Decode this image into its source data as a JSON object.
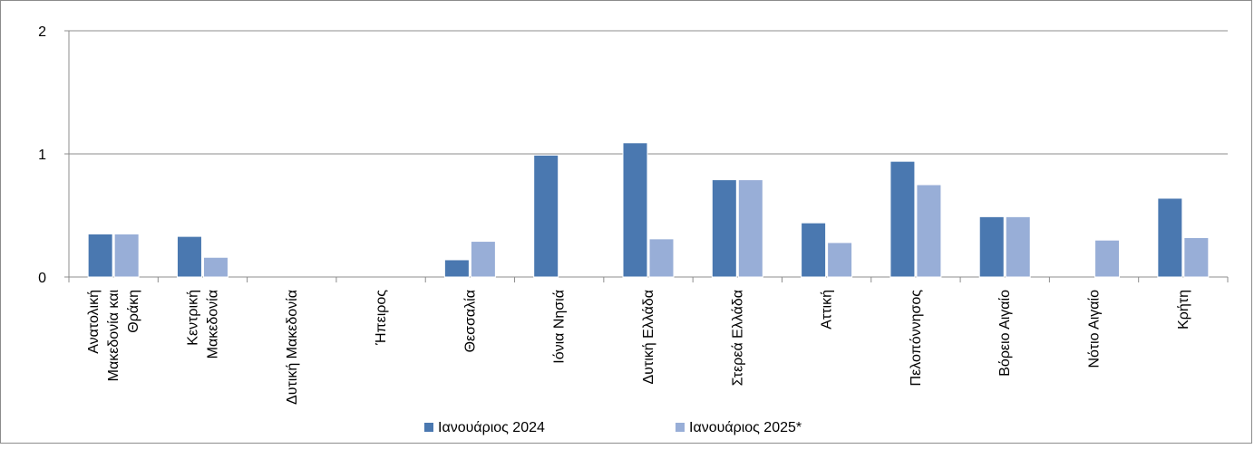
{
  "chart_data": {
    "type": "bar",
    "categories": [
      [
        "Ανατολική",
        "Μακεδονία και",
        "Θράκη"
      ],
      [
        "Κεντρική",
        "Μακεδονία"
      ],
      [
        "Δυτική Μακεδονία"
      ],
      [
        "Ήπειρος"
      ],
      [
        "Θεσσαλία"
      ],
      [
        "Ιόνια Νησιά"
      ],
      [
        "Δυτική Ελλάδα"
      ],
      [
        "Στερεά Ελλάδα"
      ],
      [
        "Αττική"
      ],
      [
        "Πελοπόννησος"
      ],
      [
        "Βόρειο Αιγαίο"
      ],
      [
        "Νότιο Αιγαίο"
      ],
      [
        "Κρήτη"
      ]
    ],
    "series": [
      {
        "name": "Ιανουάριος 2024",
        "color": "#4a78b0",
        "values": [
          0.35,
          0.33,
          0,
          0,
          0.14,
          0.99,
          1.09,
          0.79,
          0.44,
          0.94,
          0.49,
          0,
          0.64
        ]
      },
      {
        "name": "Ιανουάριος 2025*",
        "color": "#98aed7",
        "values": [
          0.35,
          0.16,
          0,
          0,
          0.29,
          0,
          0.31,
          0.79,
          0.28,
          0.75,
          0.49,
          0.3,
          0.32
        ]
      }
    ],
    "yticks": [
      "0",
      "1",
      "2"
    ],
    "ylim": [
      0,
      2
    ],
    "grid": true,
    "legend_position": "bottom"
  }
}
